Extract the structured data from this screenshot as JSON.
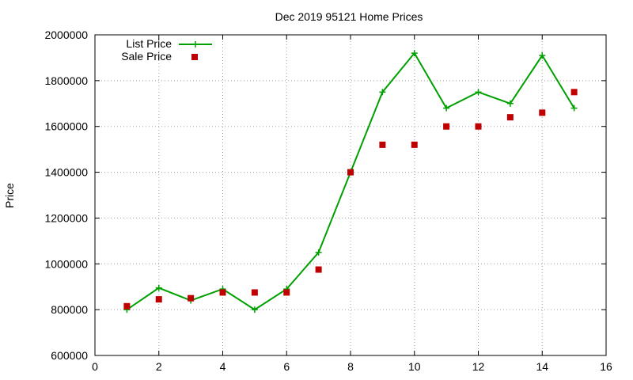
{
  "chart_data": {
    "type": "line",
    "title": "Dec 2019 95121 Home Prices",
    "xlabel": "",
    "ylabel": "Price",
    "xlim": [
      0,
      16
    ],
    "ylim": [
      600000,
      2000000
    ],
    "xticks": [
      "0",
      "2",
      "4",
      "6",
      "8",
      "10",
      "12",
      "14",
      "16"
    ],
    "yticks": [
      "600000",
      "800000",
      "1000000",
      "1200000",
      "1400000",
      "1600000",
      "1800000",
      "2000000"
    ],
    "grid": true,
    "legend_position": "top-left",
    "series": [
      {
        "name": "List Price",
        "style": "line-points",
        "marker": "plus",
        "color": "#00a000",
        "x": [
          1,
          2,
          3,
          4,
          5,
          6,
          7,
          8,
          9,
          10,
          11,
          12,
          13,
          14,
          15
        ],
        "values": [
          800000,
          895000,
          840000,
          890000,
          800000,
          890000,
          1050000,
          1400000,
          1750000,
          1920000,
          1680000,
          1750000,
          1700000,
          1910000,
          1680000
        ]
      },
      {
        "name": "Sale Price",
        "style": "points",
        "marker": "square",
        "color": "#c00000",
        "x": [
          1,
          2,
          3,
          4,
          5,
          6,
          7,
          8,
          9,
          10,
          11,
          12,
          13,
          14,
          15
        ],
        "values": [
          815000,
          845000,
          850000,
          875000,
          875000,
          875000,
          975000,
          1400000,
          1520000,
          1520000,
          1600000,
          1600000,
          1640000,
          1660000,
          1750000
        ]
      }
    ]
  }
}
